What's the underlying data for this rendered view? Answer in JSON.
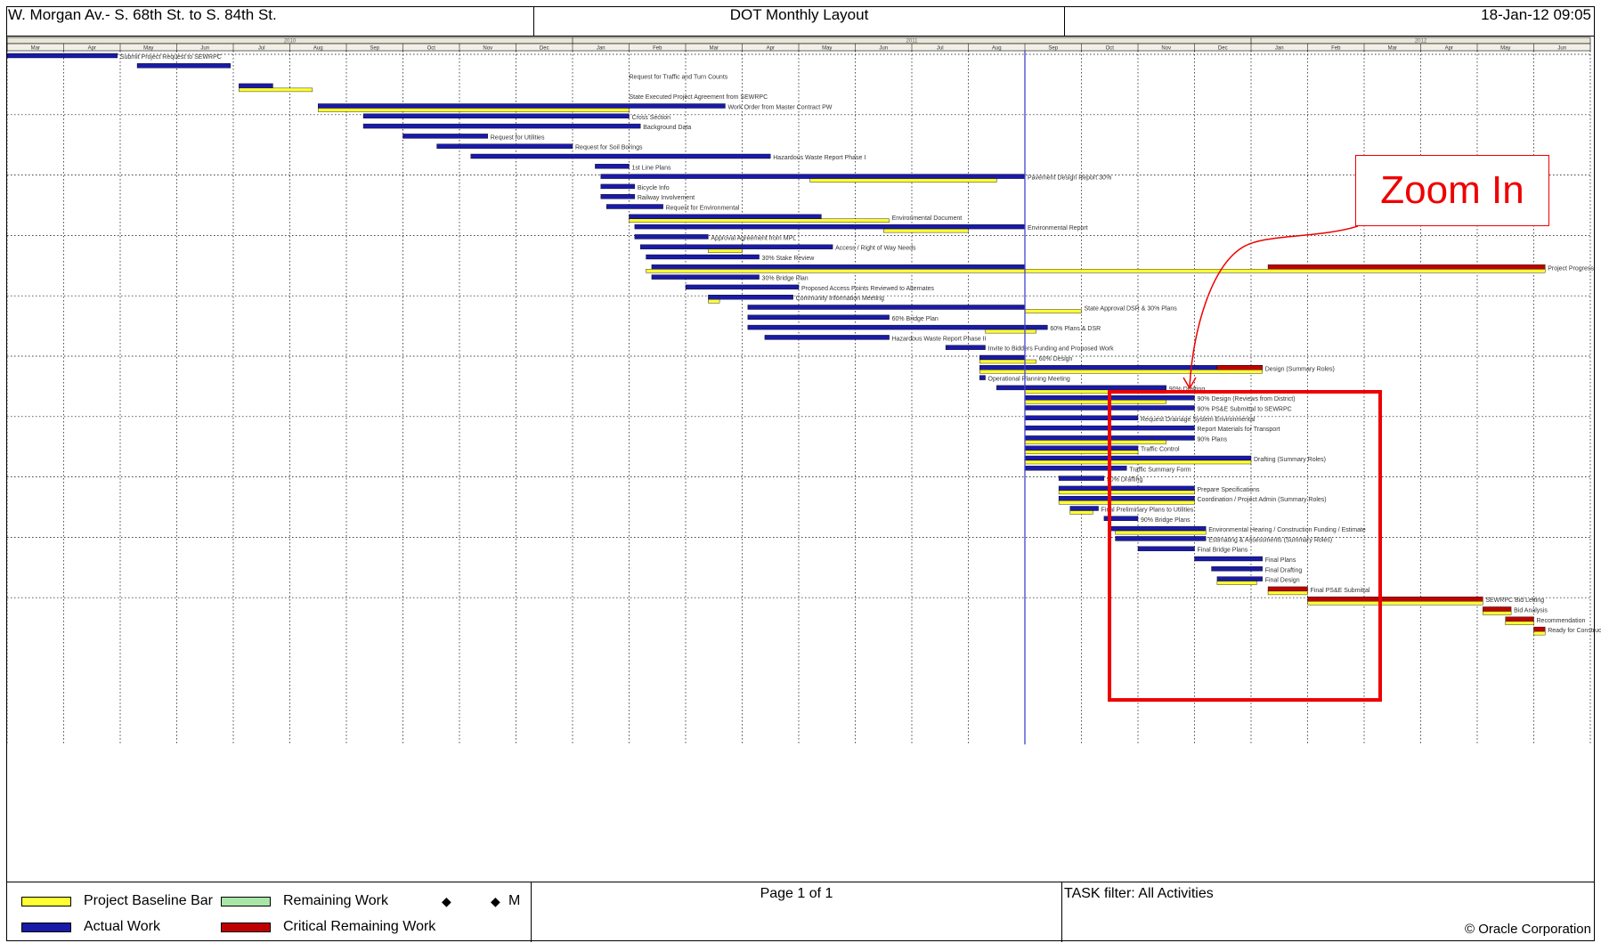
{
  "header": {
    "project": "W. Morgan Av.- S. 68th St. to S. 84th St.",
    "layout": "DOT Monthly Layout",
    "date": "18-Jan-12 09:05"
  },
  "chart_data": {
    "type": "gantt",
    "years": [
      "2010",
      "2011",
      "2012"
    ],
    "months": [
      "Mar",
      "Apr",
      "May",
      "Jun",
      "Jul",
      "Aug",
      "Sep",
      "Oct",
      "Nov",
      "Dec",
      "Jan",
      "Feb",
      "Mar",
      "Apr",
      "May",
      "Jun",
      "Jul",
      "Aug",
      "Sep",
      "Oct",
      "Nov",
      "Dec",
      "Jan",
      "Feb",
      "Mar",
      "Apr",
      "May",
      "Jun"
    ],
    "data_date_month_index": 18.0,
    "bar_types": {
      "A": "Actual Work",
      "B": "Project Baseline Bar",
      "R": "Critical Remaining Work"
    },
    "rows": [
      {
        "label": "Submit Project Request to SEWRPC",
        "bars": [
          [
            "A",
            0.0,
            1.95
          ]
        ]
      },
      {
        "label": "",
        "bars": [
          [
            "A",
            2.3,
            3.95
          ]
        ]
      },
      {
        "label": "Request for Traffic and Turn Counts",
        "bars": []
      },
      {
        "label": "",
        "bars": [
          [
            "A",
            4.1,
            4.7
          ],
          [
            "B",
            4.1,
            5.4
          ]
        ]
      },
      {
        "label": "State Executed Project Agreement from SEWRPC",
        "bars": []
      },
      {
        "label": "Work Order from Master Contract PW",
        "bars": [
          [
            "A",
            5.5,
            12.7
          ],
          [
            "B",
            5.5,
            11.0
          ]
        ]
      },
      {
        "label": "Cross Section",
        "bars": [
          [
            "A",
            6.3,
            11.0
          ]
        ]
      },
      {
        "label": "Background Data",
        "bars": [
          [
            "A",
            6.3,
            11.2
          ]
        ]
      },
      {
        "label": "Request for Utilities",
        "bars": [
          [
            "A",
            7.0,
            8.5
          ]
        ]
      },
      {
        "label": "Request for Soil Borings",
        "bars": [
          [
            "A",
            7.6,
            10.0
          ]
        ]
      },
      {
        "label": "Hazardous Waste Report Phase I",
        "bars": [
          [
            "A",
            8.2,
            13.5
          ]
        ]
      },
      {
        "label": "1st Line Plans",
        "bars": [
          [
            "A",
            10.4,
            11.0
          ]
        ]
      },
      {
        "label": "Pavement Design Report 30%",
        "bars": [
          [
            "A",
            10.5,
            18.0
          ],
          [
            "B",
            14.2,
            17.5
          ]
        ]
      },
      {
        "label": "Bicycle Info",
        "bars": [
          [
            "A",
            10.5,
            11.1
          ]
        ]
      },
      {
        "label": "Railway Involvement",
        "bars": [
          [
            "A",
            10.5,
            11.1
          ]
        ]
      },
      {
        "label": "Request for Environmental",
        "bars": [
          [
            "A",
            10.6,
            11.6
          ]
        ]
      },
      {
        "label": "Environmental Document",
        "bars": [
          [
            "A",
            11.0,
            14.4
          ],
          [
            "B",
            11.0,
            15.6
          ]
        ]
      },
      {
        "label": "Environmental Report",
        "bars": [
          [
            "A",
            11.1,
            18.0
          ],
          [
            "B",
            15.5,
            17.0
          ]
        ]
      },
      {
        "label": "Approval Agreement from MPL",
        "bars": [
          [
            "A",
            11.1,
            12.4
          ]
        ]
      },
      {
        "label": "Access / Right of Way Needs",
        "bars": [
          [
            "A",
            11.2,
            14.6
          ],
          [
            "B",
            12.4,
            13.0
          ]
        ]
      },
      {
        "label": "30% Stake Review",
        "bars": [
          [
            "A",
            11.3,
            13.3
          ]
        ]
      },
      {
        "label": "Project Progress",
        "bars": [
          [
            "A",
            11.4,
            18.0
          ],
          [
            "B",
            11.3,
            27.2
          ],
          [
            "R",
            22.3,
            27.2
          ]
        ]
      },
      {
        "label": "30% Bridge Plan",
        "bars": [
          [
            "A",
            11.4,
            13.3
          ]
        ]
      },
      {
        "label": "Proposed Access Points Reviewed to Alternates",
        "bars": [
          [
            "A",
            12.0,
            14.0
          ]
        ]
      },
      {
        "label": "Community Information Meeting",
        "bars": [
          [
            "A",
            12.4,
            13.9
          ],
          [
            "B",
            12.4,
            12.6
          ]
        ]
      },
      {
        "label": "State Approval DSR & 30% Plans",
        "bars": [
          [
            "A",
            13.1,
            18.0
          ],
          [
            "B",
            18.0,
            19.0
          ]
        ]
      },
      {
        "label": "60% Bridge Plan",
        "bars": [
          [
            "A",
            13.1,
            15.6
          ]
        ]
      },
      {
        "label": "60% Plans & DSR",
        "bars": [
          [
            "A",
            13.1,
            18.4
          ],
          [
            "B",
            17.3,
            18.2
          ]
        ]
      },
      {
        "label": "Hazardous Waste Report Phase II",
        "bars": [
          [
            "A",
            13.4,
            15.6
          ]
        ]
      },
      {
        "label": "Invite to Bidders Funding and Proposed Work",
        "bars": [
          [
            "A",
            16.6,
            17.3
          ]
        ]
      },
      {
        "label": "60% Design",
        "bars": [
          [
            "A",
            17.2,
            18.0
          ],
          [
            "B",
            17.2,
            18.2
          ]
        ]
      },
      {
        "label": "Design (Summary Roles)",
        "bars": [
          [
            "A",
            17.2,
            22.2
          ],
          [
            "B",
            17.2,
            22.2
          ],
          [
            "R",
            21.4,
            22.2
          ]
        ]
      },
      {
        "label": "Operational Planning Meeting",
        "bars": [
          [
            "A",
            17.2,
            17.3
          ]
        ]
      },
      {
        "label": "90% Drafting",
        "bars": [
          [
            "A",
            17.5,
            20.5
          ],
          [
            "B",
            18.0,
            20.5
          ]
        ]
      },
      {
        "label": "90% Design (Reviews from District)",
        "bars": [
          [
            "A",
            18.0,
            21.0
          ],
          [
            "B",
            18.0,
            20.5
          ]
        ]
      },
      {
        "label": "90% PS&E Submittal to SEWRPC",
        "bars": [
          [
            "A",
            18.0,
            21.0
          ]
        ]
      },
      {
        "label": "Request Drainage System Environmental",
        "bars": [
          [
            "A",
            18.0,
            20.0
          ]
        ]
      },
      {
        "label": "Report Materials for Transport",
        "bars": [
          [
            "A",
            18.0,
            21.0
          ]
        ]
      },
      {
        "label": "90% Plans",
        "bars": [
          [
            "A",
            18.0,
            21.0
          ],
          [
            "B",
            18.0,
            20.5
          ]
        ]
      },
      {
        "label": "Traffic Control",
        "bars": [
          [
            "A",
            18.0,
            20.0
          ],
          [
            "B",
            18.0,
            20.0
          ]
        ]
      },
      {
        "label": "Drafting (Summary Roles)",
        "bars": [
          [
            "A",
            18.0,
            22.0
          ],
          [
            "B",
            18.0,
            22.0
          ]
        ]
      },
      {
        "label": "Traffic Summary Form",
        "bars": [
          [
            "A",
            18.0,
            19.8
          ]
        ]
      },
      {
        "label": "90% Drafting",
        "bars": [
          [
            "A",
            18.6,
            19.4
          ]
        ]
      },
      {
        "label": "Prepare Specifications",
        "bars": [
          [
            "A",
            18.6,
            21.0
          ],
          [
            "B",
            18.6,
            21.0
          ]
        ]
      },
      {
        "label": "Coordination / Project Admin (Summary Roles)",
        "bars": [
          [
            "A",
            18.6,
            21.0
          ],
          [
            "B",
            18.6,
            21.0
          ]
        ]
      },
      {
        "label": "Final Preliminary Plans to Utilities",
        "bars": [
          [
            "A",
            18.8,
            19.3
          ],
          [
            "B",
            18.8,
            19.2
          ]
        ]
      },
      {
        "label": "90% Bridge Plans",
        "bars": [
          [
            "A",
            19.4,
            20.0
          ]
        ]
      },
      {
        "label": "Environmental Hearing / Construction Funding / Estimate",
        "bars": [
          [
            "A",
            19.5,
            21.2
          ],
          [
            "B",
            19.6,
            21.2
          ]
        ]
      },
      {
        "label": "Estimating & Assessments (Summary Roles)",
        "bars": [
          [
            "A",
            19.6,
            21.2
          ]
        ]
      },
      {
        "label": "Final Bridge Plans",
        "bars": [
          [
            "A",
            20.0,
            21.0
          ]
        ]
      },
      {
        "label": "Final Plans",
        "bars": [
          [
            "A",
            21.0,
            22.2
          ]
        ]
      },
      {
        "label": "Final Drafting",
        "bars": [
          [
            "A",
            21.3,
            22.2
          ]
        ]
      },
      {
        "label": "Final Design",
        "bars": [
          [
            "A",
            21.4,
            22.2
          ],
          [
            "B",
            21.4,
            22.1
          ]
        ]
      },
      {
        "label": "Final PS&E Submittal",
        "bars": [
          [
            "R",
            22.3,
            23.0
          ],
          [
            "B",
            22.3,
            23.0
          ]
        ]
      },
      {
        "label": "SEWRPC Bid Letting",
        "bars": [
          [
            "R",
            23.0,
            26.1
          ],
          [
            "B",
            23.0,
            26.1
          ]
        ]
      },
      {
        "label": "Bid Analysis",
        "bars": [
          [
            "R",
            26.1,
            26.6
          ],
          [
            "B",
            26.1,
            26.6
          ]
        ]
      },
      {
        "label": "Recommendation",
        "bars": [
          [
            "R",
            26.5,
            27.0
          ],
          [
            "B",
            26.5,
            27.0
          ]
        ]
      },
      {
        "label": "Ready for Construction",
        "bars": [
          [
            "R",
            27.0,
            27.2
          ],
          [
            "B",
            27.0,
            27.2
          ]
        ]
      }
    ]
  },
  "annotation": {
    "zoom_label": "Zoom In"
  },
  "footer": {
    "legend": {
      "baseline": "Project Baseline Bar",
      "actual": "Actual Work",
      "remaining": "Remaining Work",
      "critical": "Critical Remaining Work",
      "milestone": "M"
    },
    "page": "Page 1 of 1",
    "filter": "TASK filter: All Activities",
    "copyright": "© Oracle Corporation"
  },
  "colors": {
    "actual": "#1a1aa8",
    "baseline": "#ffff33",
    "critical": "#c00000",
    "remaining": "#a8e6a8",
    "data_date": "#4444cc",
    "annotation": "#ee0000"
  }
}
